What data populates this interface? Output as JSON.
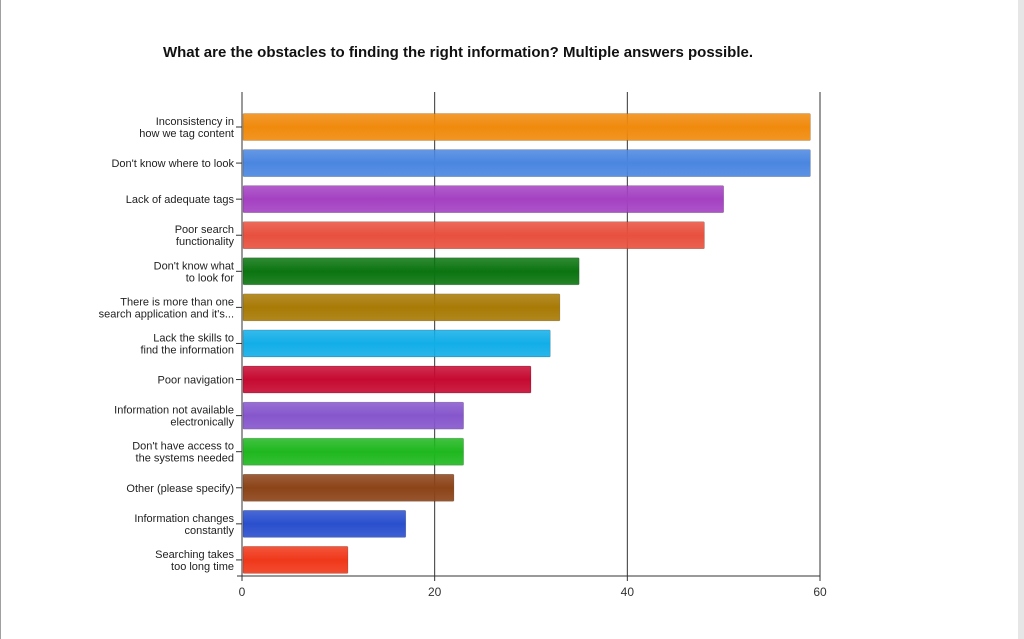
{
  "chart_data": {
    "type": "bar",
    "orientation": "horizontal",
    "title": "What are the obstacles to finding the right information? Multiple answers possible.",
    "xlabel": "",
    "ylabel": "",
    "xlim": [
      0,
      60
    ],
    "x_ticks": [
      0,
      20,
      40,
      60
    ],
    "grid": true,
    "categories": [
      [
        "Inconsistency in",
        "how we tag content"
      ],
      [
        "Don't know where to look"
      ],
      [
        "Lack of adequate tags"
      ],
      [
        "Poor search",
        "functionality"
      ],
      [
        "Don't know what",
        "to look for"
      ],
      [
        "There is more than one",
        "search application and it's..."
      ],
      [
        "Lack the skills to",
        "find the information"
      ],
      [
        "Poor navigation"
      ],
      [
        "Information not available",
        "electronically"
      ],
      [
        "Don't have access to",
        "the systems needed"
      ],
      [
        "Other (please specify)"
      ],
      [
        "Information changes",
        "constantly"
      ],
      [
        "Searching takes",
        "too long time"
      ]
    ],
    "values": [
      59,
      59,
      50,
      48,
      35,
      33,
      32,
      30,
      23,
      23,
      22,
      17,
      11
    ],
    "colors": [
      "#f08a0c",
      "#4a86e0",
      "#a441c2",
      "#e8503e",
      "#0b7510",
      "#a87a05",
      "#12aee8",
      "#c60a31",
      "#8656cc",
      "#1fb81f",
      "#8c4318",
      "#2a4fce",
      "#f0381a"
    ]
  }
}
